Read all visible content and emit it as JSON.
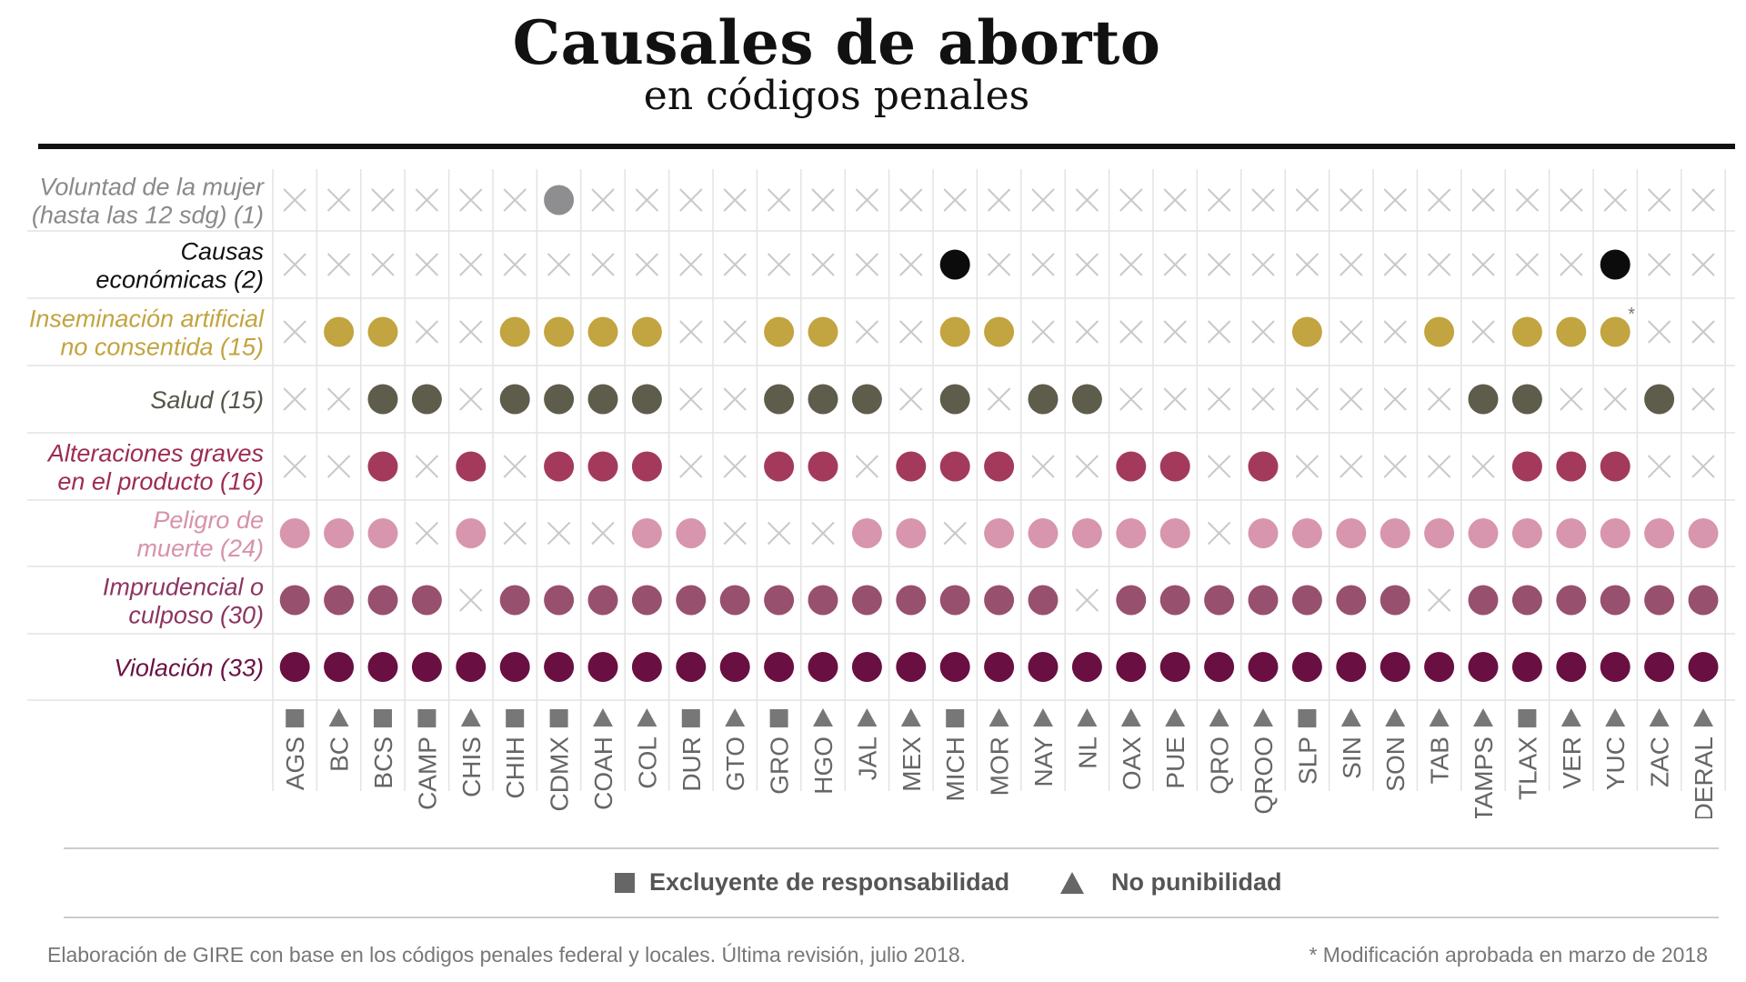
{
  "title": "Causales de aborto",
  "subtitle": "en códigos penales",
  "chart_data": {
    "type": "table",
    "columns": [
      {
        "code": "AGS",
        "marker": "square"
      },
      {
        "code": "BC",
        "marker": "triangle"
      },
      {
        "code": "BCS",
        "marker": "square"
      },
      {
        "code": "CAMP",
        "marker": "square"
      },
      {
        "code": "CHIS",
        "marker": "triangle"
      },
      {
        "code": "CHIH",
        "marker": "square"
      },
      {
        "code": "CDMX",
        "marker": "square"
      },
      {
        "code": "COAH",
        "marker": "triangle"
      },
      {
        "code": "COL",
        "marker": "triangle"
      },
      {
        "code": "DUR",
        "marker": "square"
      },
      {
        "code": "GTO",
        "marker": "triangle"
      },
      {
        "code": "GRO",
        "marker": "square"
      },
      {
        "code": "HGO",
        "marker": "triangle"
      },
      {
        "code": "JAL",
        "marker": "triangle"
      },
      {
        "code": "MEX",
        "marker": "triangle"
      },
      {
        "code": "MICH",
        "marker": "square"
      },
      {
        "code": "MOR",
        "marker": "triangle"
      },
      {
        "code": "NAY",
        "marker": "triangle"
      },
      {
        "code": "NL",
        "marker": "triangle"
      },
      {
        "code": "OAX",
        "marker": "triangle"
      },
      {
        "code": "PUE",
        "marker": "triangle"
      },
      {
        "code": "QRO",
        "marker": "triangle"
      },
      {
        "code": "QROO",
        "marker": "triangle"
      },
      {
        "code": "SLP",
        "marker": "square"
      },
      {
        "code": "SIN",
        "marker": "triangle"
      },
      {
        "code": "SON",
        "marker": "triangle"
      },
      {
        "code": "TAB",
        "marker": "triangle"
      },
      {
        "code": "TAMPS",
        "marker": "triangle"
      },
      {
        "code": "TLAX",
        "marker": "square"
      },
      {
        "code": "VER",
        "marker": "triangle"
      },
      {
        "code": "YUC",
        "marker": "triangle"
      },
      {
        "code": "ZAC",
        "marker": "triangle"
      },
      {
        "code": "FEDERAL",
        "marker": "triangle"
      }
    ],
    "rows": [
      {
        "lines": [
          "Voluntad de la mujer",
          "(hasta las 12 sdg) (1)"
        ],
        "label_color": "#8a8a8a",
        "dot_color": "#8e8e90",
        "count": 1,
        "values": [
          0,
          0,
          0,
          0,
          0,
          0,
          1,
          0,
          0,
          0,
          0,
          0,
          0,
          0,
          0,
          0,
          0,
          0,
          0,
          0,
          0,
          0,
          0,
          0,
          0,
          0,
          0,
          0,
          0,
          0,
          0,
          0,
          0
        ]
      },
      {
        "lines": [
          "Causas",
          "económicas (2)"
        ],
        "label_color": "#111111",
        "dot_color": "#0c0c0c",
        "count": 2,
        "values": [
          0,
          0,
          0,
          0,
          0,
          0,
          0,
          0,
          0,
          0,
          0,
          0,
          0,
          0,
          0,
          1,
          0,
          0,
          0,
          0,
          0,
          0,
          0,
          0,
          0,
          0,
          0,
          0,
          0,
          0,
          1,
          0,
          0
        ]
      },
      {
        "lines": [
          "Inseminación artificial",
          "no consentida (15)"
        ],
        "label_color": "#c2a440",
        "dot_color": "#c2a440",
        "count": 15,
        "values": [
          0,
          1,
          1,
          0,
          0,
          1,
          1,
          1,
          1,
          0,
          0,
          1,
          1,
          0,
          0,
          1,
          1,
          0,
          0,
          0,
          0,
          0,
          0,
          1,
          0,
          0,
          1,
          0,
          1,
          1,
          1,
          0,
          0
        ],
        "asterisk_col": 30
      },
      {
        "lines": [
          "Salud (15)"
        ],
        "label_color": "#555548",
        "dot_color": "#5e5c4b",
        "count": 15,
        "values": [
          0,
          0,
          1,
          1,
          0,
          1,
          1,
          1,
          1,
          0,
          0,
          1,
          1,
          1,
          0,
          1,
          0,
          1,
          1,
          0,
          0,
          0,
          0,
          0,
          0,
          0,
          0,
          1,
          1,
          0,
          0,
          1,
          0
        ]
      },
      {
        "lines": [
          "Alteraciones graves",
          "en el producto (16)"
        ],
        "label_color": "#9e2c52",
        "dot_color": "#a33a5c",
        "count": 16,
        "values": [
          0,
          0,
          1,
          0,
          1,
          0,
          1,
          1,
          1,
          0,
          0,
          1,
          1,
          0,
          1,
          1,
          1,
          0,
          0,
          1,
          1,
          0,
          1,
          0,
          0,
          0,
          0,
          0,
          1,
          1,
          1,
          0,
          0
        ]
      },
      {
        "lines": [
          "Peligro de",
          "muerte (24)"
        ],
        "label_color": "#d792ac",
        "dot_color": "#d895ae",
        "count": 24,
        "values": [
          1,
          1,
          1,
          0,
          1,
          0,
          0,
          0,
          1,
          1,
          0,
          0,
          0,
          1,
          1,
          0,
          1,
          1,
          1,
          1,
          1,
          0,
          1,
          1,
          1,
          1,
          1,
          1,
          1,
          1,
          1,
          1,
          1
        ]
      },
      {
        "lines": [
          "Imprudencial o",
          "culposo (30)"
        ],
        "label_color": "#8c3662",
        "dot_color": "#98506f",
        "count": 30,
        "values": [
          1,
          1,
          1,
          1,
          0,
          1,
          1,
          1,
          1,
          1,
          1,
          1,
          1,
          1,
          1,
          1,
          1,
          1,
          0,
          1,
          1,
          1,
          1,
          1,
          1,
          1,
          0,
          1,
          1,
          1,
          1,
          1,
          1
        ]
      },
      {
        "lines": [
          "Violación (33)"
        ],
        "label_color": "#6a1143",
        "dot_color": "#6a0f42",
        "count": 33,
        "values": [
          1,
          1,
          1,
          1,
          1,
          1,
          1,
          1,
          1,
          1,
          1,
          1,
          1,
          1,
          1,
          1,
          1,
          1,
          1,
          1,
          1,
          1,
          1,
          1,
          1,
          1,
          1,
          1,
          1,
          1,
          1,
          1,
          1
        ]
      }
    ],
    "legend": [
      {
        "marker": "square",
        "label": "Excluyente de responsabilidad"
      },
      {
        "marker": "triangle",
        "label": "No punibilidad"
      }
    ],
    "asterisk_symbol": "*"
  },
  "footer": {
    "source": "Elaboración de GIRE con base en los códigos penales federal y locales. Última revisión, julio 2018.",
    "note": "* Modificación aprobada en marzo de 2018"
  },
  "colors": {
    "marker": "#777777",
    "cross": "#c9c9c9",
    "grid": "#e3e3e3"
  }
}
